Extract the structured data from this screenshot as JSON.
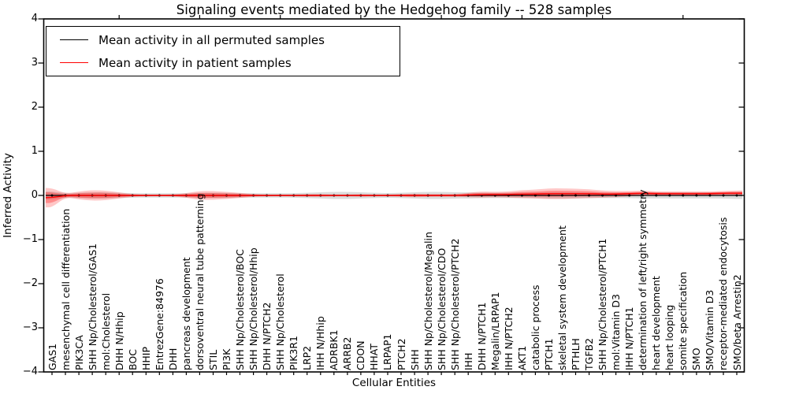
{
  "title": "Signaling events mediated by the Hedgehog family -- 528 samples",
  "legend": {
    "entries": [
      {
        "label": "Mean activity in all permuted samples",
        "color": "#000000"
      },
      {
        "label": "Mean activity in patient samples",
        "color": "#ff0000"
      }
    ]
  },
  "chart_data": {
    "type": "line",
    "title": "Signaling events mediated by the Hedgehog family -- 528 samples",
    "xlabel": "Cellular Entities",
    "ylabel": "Inferred Activity",
    "ylim": [
      -4,
      4
    ],
    "yticks": [
      4,
      3,
      2,
      1,
      0,
      -1,
      -2,
      -3,
      -4
    ],
    "grid": false,
    "legend_position": "upper left",
    "sample_count": "528 samples",
    "colors": {
      "permuted": "#000000",
      "patient": "#ff0000",
      "permuted_band": "#bebebe",
      "patient_band": "#ff0000"
    },
    "categories": [
      "GAS1",
      "mesenchymal cell differentiation",
      "PIK3CA",
      "SHH Np/Cholesterol/GAS1",
      "mol:Cholesterol",
      "DHH N/Hhip",
      "BOC",
      "HHIP",
      "EntrezGene:84976",
      "DHH",
      "pancreas development",
      "dorsoventral neural tube patterning",
      "STIL",
      "PI3K",
      "SHH Np/Cholesterol/BOC",
      "SHH Np/Cholesterol/Hhip",
      "DHH N/PTCH2",
      "SHH Np/Cholesterol",
      "PIK3R1",
      "LRP2",
      "IHH N/Hhip",
      "ADRBK1",
      "ARRB2",
      "CDON",
      "HHAT",
      "LRPAP1",
      "PTCH2",
      "SHH",
      "SHH Np/Cholesterol/Megalin",
      "SHH Np/Cholesterol/CDO",
      "SHH Np/Cholesterol/PTCH2",
      "IHH",
      "DHH N/PTCH1",
      "Megalin/LRPAP1",
      "IHH N/PTCH2",
      "AKT1",
      "catabolic process",
      "PTCH1",
      "skeletal system development",
      "PTHLH",
      "TGFB2",
      "SHH Np/Cholesterol/PTCH1",
      "mol:Vitamin D3",
      "IHH N/PTCH1",
      "determination of left/right symmetry",
      "heart development",
      "heart looping",
      "somite specification",
      "SMO",
      "SMO/Vitamin D3",
      "receptor-mediated endocytosis",
      "SMO/beta Arrestin2"
    ],
    "series": [
      {
        "name": "Mean activity in all permuted samples",
        "color": "#000000",
        "values": [
          0,
          0,
          0,
          0,
          0,
          0,
          0,
          0,
          0,
          0,
          0,
          0,
          0,
          0,
          0,
          0,
          0,
          0,
          0,
          0,
          0,
          0,
          0,
          0,
          0,
          0,
          0,
          0,
          0,
          0,
          0,
          0,
          0,
          0,
          0,
          0,
          0,
          0,
          0,
          0,
          0,
          0,
          0,
          0,
          0,
          0,
          0,
          0,
          0,
          0,
          0,
          0
        ],
        "band_halfwidth": [
          0.09,
          0.05,
          0.06,
          0.07,
          0.07,
          0.06,
          0.05,
          0.05,
          0.05,
          0.05,
          0.05,
          0.06,
          0.06,
          0.06,
          0.05,
          0.05,
          0.05,
          0.05,
          0.05,
          0.06,
          0.07,
          0.08,
          0.08,
          0.07,
          0.06,
          0.05,
          0.06,
          0.07,
          0.08,
          0.08,
          0.07,
          0.07,
          0.06,
          0.06,
          0.06,
          0.06,
          0.06,
          0.07,
          0.07,
          0.07,
          0.06,
          0.06,
          0.06,
          0.06,
          0.07,
          0.07,
          0.07,
          0.07,
          0.07,
          0.07,
          0.07,
          0.08
        ]
      },
      {
        "name": "Mean activity in patient samples",
        "color": "#ff0000",
        "values": [
          -0.05,
          0,
          0,
          0,
          0,
          0,
          0,
          0,
          0,
          0,
          0,
          0,
          0,
          0,
          0,
          0,
          0,
          0,
          0,
          0,
          0,
          0,
          0,
          0,
          0,
          0,
          0,
          0,
          0,
          0,
          0,
          0.01,
          0.02,
          0.02,
          0.02,
          0.03,
          0.03,
          0.04,
          0.04,
          0.04,
          0.04,
          0.03,
          0.03,
          0.04,
          0.05,
          0.04,
          0.04,
          0.04,
          0.04,
          0.04,
          0.05,
          0.05
        ],
        "band_halfwidth": [
          0.22,
          0.04,
          0.09,
          0.12,
          0.11,
          0.07,
          0.03,
          0.02,
          0.02,
          0.02,
          0.05,
          0.1,
          0.1,
          0.08,
          0.06,
          0.03,
          0.02,
          0.02,
          0.02,
          0.03,
          0.03,
          0.02,
          0.02,
          0.03,
          0.02,
          0.02,
          0.03,
          0.04,
          0.03,
          0.03,
          0.03,
          0.05,
          0.07,
          0.06,
          0.07,
          0.09,
          0.1,
          0.12,
          0.12,
          0.11,
          0.1,
          0.08,
          0.07,
          0.06,
          0.06,
          0.05,
          0.05,
          0.05,
          0.05,
          0.05,
          0.05,
          0.06
        ]
      }
    ]
  }
}
